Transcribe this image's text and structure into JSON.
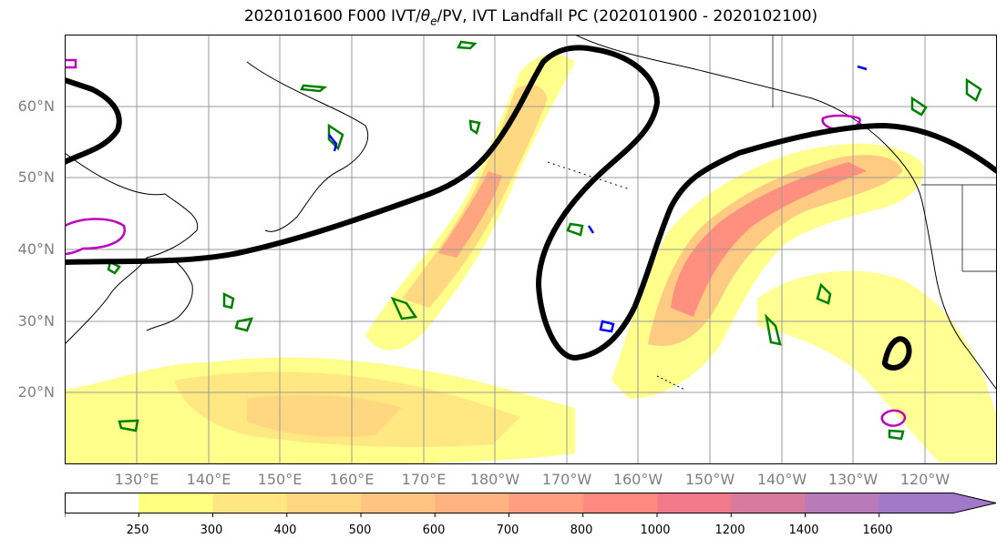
{
  "title": "2020101600 F000 IVT/θe/PV, IVT Landfall PC (2020101900 - 2020102100)",
  "title_parts": {
    "prefix": "2020101600 F000 IVT/",
    "theta": "θ",
    "sub": "e",
    "suffix": "/PV, IVT Landfall PC (2020101900 - 2020102100)"
  },
  "lat_labels": [
    "60°N",
    "50°N",
    "40°N",
    "30°N",
    "20°N"
  ],
  "lon_labels": [
    "130°E",
    "140°E",
    "150°E",
    "160°E",
    "170°E",
    "180°W",
    "170°W",
    "160°W",
    "150°W",
    "140°W",
    "130°W",
    "120°W"
  ],
  "colorbar": {
    "ticks": [
      "250",
      "300",
      "400",
      "500",
      "600",
      "700",
      "800",
      "1000",
      "1200",
      "1400",
      "1600"
    ],
    "colors": [
      "#ffffff",
      "#ffff80",
      "#ffe680",
      "#ffd580",
      "#ffc480",
      "#ffb380",
      "#ff9f80",
      "#ff8a80",
      "#f07a8a",
      "#d67aa0",
      "#b87ab8",
      "#a07ac8"
    ]
  },
  "colors": {
    "ivt_low": "#ffff80",
    "ivt_mid": "#ffd580",
    "ivt_high": "#ff8a80",
    "theta_e": "#008000",
    "pv": "#0000ff",
    "landfall": "#c000c0",
    "pc_contour": "#000000",
    "grid": "#999999",
    "coast": "#000000"
  },
  "map_extent": {
    "lon_min": 120,
    "lon_max": 250,
    "lat_min": 10,
    "lat_max": 70
  }
}
